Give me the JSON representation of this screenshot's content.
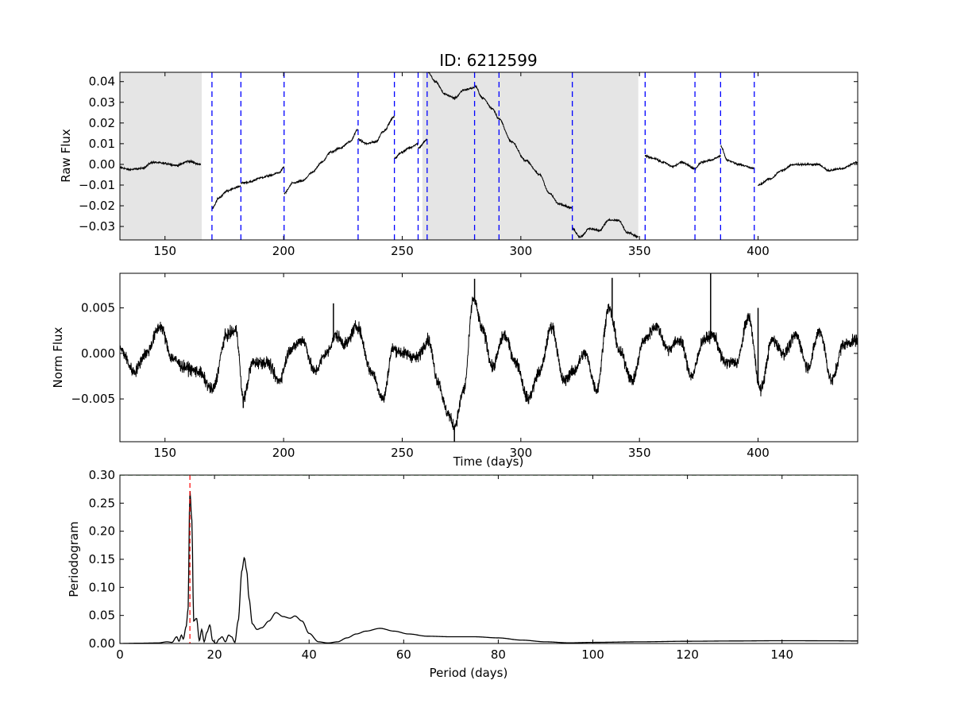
{
  "figure": {
    "title": "ID: 6212599"
  },
  "chart_data": [
    {
      "type": "line",
      "panel": "raw",
      "title": "ID: 6212599",
      "xlabel": "",
      "ylabel": "Raw Flux",
      "xlim": [
        131,
        442
      ],
      "ylim": [
        -0.0365,
        0.0445
      ],
      "xticks": [
        150,
        200,
        250,
        300,
        350,
        400
      ],
      "yticks": [
        -0.03,
        -0.02,
        -0.01,
        0.0,
        0.01,
        0.02,
        0.03,
        0.04
      ],
      "xtick_labels": [
        "150",
        "200",
        "250",
        "300",
        "350",
        "400"
      ],
      "ytick_labels": [
        "−0.03",
        "−0.02",
        "−0.01",
        "0.00",
        "0.01",
        "0.02",
        "0.03",
        "0.04"
      ],
      "shaded_regions": [
        [
          131,
          165.5
        ],
        [
          258.5,
          349.5
        ]
      ],
      "shade_color": "#e5e5e5",
      "quarter_boundaries": [
        169.8,
        182.0,
        200.2,
        231.4,
        246.7,
        256.7,
        260.5,
        280.5,
        290.8,
        321.7,
        352.4,
        373.4,
        384.2,
        398.4
      ],
      "boundary_color": "#0000ff",
      "line_color": "#000000",
      "segments": [
        {
          "x": [
            131,
            135,
            140,
            145,
            150,
            155,
            160,
            165
          ],
          "y": [
            -0.0015,
            -0.0025,
            -0.002,
            0.001,
            0.0005,
            -0.0005,
            0.0015,
            0.0
          ]
        },
        {
          "x": [
            169.8,
            173,
            176,
            179,
            182
          ],
          "y": [
            -0.021,
            -0.016,
            -0.013,
            -0.0115,
            -0.0105
          ]
        },
        {
          "x": [
            182.0,
            186,
            190,
            194,
            198,
            200.2
          ],
          "y": [
            -0.009,
            -0.0085,
            -0.0065,
            -0.0055,
            -0.004,
            -0.0015
          ]
        },
        {
          "x": [
            200.2,
            204,
            208,
            212,
            216,
            220,
            224,
            228,
            231.4
          ],
          "y": [
            -0.014,
            -0.009,
            -0.008,
            -0.004,
            0.001,
            0.006,
            0.008,
            0.011,
            0.017
          ]
        },
        {
          "x": [
            231.4,
            235,
            239,
            242,
            246.7
          ],
          "y": [
            0.012,
            0.01,
            0.011,
            0.016,
            0.023
          ]
        },
        {
          "x": [
            246.7,
            250,
            253,
            256.7
          ],
          "y": [
            0.003,
            0.006,
            0.008,
            0.01
          ]
        },
        {
          "x": [
            256.7,
            260.5
          ],
          "y": [
            0.008,
            0.012
          ]
        },
        {
          "x": [
            260.5,
            264,
            268,
            272,
            276,
            280.5
          ],
          "y": [
            0.045,
            0.04,
            0.034,
            0.032,
            0.036,
            0.037
          ]
        },
        {
          "x": [
            280.5,
            284,
            288,
            290.8
          ],
          "y": [
            0.038,
            0.032,
            0.027,
            0.022
          ]
        },
        {
          "x": [
            290.8,
            296,
            302,
            308,
            312,
            316,
            321.7
          ],
          "y": [
            0.022,
            0.011,
            0.002,
            -0.005,
            -0.014,
            -0.019,
            -0.021
          ]
        },
        {
          "x": [
            321.7,
            325,
            329,
            333,
            337,
            341,
            345,
            349.5
          ],
          "y": [
            -0.031,
            -0.035,
            -0.031,
            -0.032,
            -0.027,
            -0.027,
            -0.033,
            -0.035
          ]
        },
        {
          "x": [
            352.4,
            356,
            360,
            364,
            368,
            373.4
          ],
          "y": [
            0.004,
            0.003,
            0.001,
            -0.001,
            0.001,
            -0.002
          ]
        },
        {
          "x": [
            373.4,
            376,
            380,
            384.2
          ],
          "y": [
            -0.002,
            0.001,
            0.002,
            0.004
          ]
        },
        {
          "x": [
            384.2,
            387,
            392,
            398.4
          ],
          "y": [
            0.009,
            0.002,
            0.0,
            -0.002
          ]
        },
        {
          "x": [
            400,
            405,
            410,
            415,
            420,
            425,
            430,
            435,
            442
          ],
          "y": [
            -0.01,
            -0.007,
            -0.003,
            0.0,
            0.0,
            0.0,
            -0.003,
            -0.002,
            0.001
          ]
        }
      ]
    },
    {
      "type": "line",
      "panel": "norm",
      "title": "",
      "xlabel": "Time (days)",
      "ylabel": "Norm Flux",
      "xlim": [
        131,
        442
      ],
      "ylim": [
        -0.0097,
        0.0088
      ],
      "xticks": [
        150,
        200,
        250,
        300,
        350,
        400
      ],
      "yticks": [
        -0.005,
        0.0,
        0.005
      ],
      "xtick_labels": [
        "150",
        "200",
        "250",
        "300",
        "350",
        "400"
      ],
      "ytick_labels": [
        "−0.005",
        "0.000",
        "0.005"
      ],
      "line_color": "#000000",
      "x": [
        131,
        137,
        142,
        148,
        153,
        158,
        164,
        170,
        176,
        180,
        183,
        187,
        193,
        198,
        203,
        208,
        213,
        218,
        222,
        226,
        231,
        237,
        242,
        246,
        251,
        256,
        261,
        265,
        269,
        272,
        276,
        280,
        284,
        288,
        293,
        298,
        303,
        308,
        313,
        318,
        322,
        327,
        332,
        337,
        342,
        347,
        352,
        357,
        362,
        367,
        372,
        377,
        381,
        386,
        391,
        396,
        401,
        406,
        411,
        416,
        421,
        426,
        431,
        436,
        442
      ],
      "y": [
        0.0005,
        -0.002,
        0.0,
        0.003,
        -0.0005,
        -0.0015,
        -0.002,
        -0.004,
        0.002,
        0.0025,
        -0.005,
        -0.001,
        -0.001,
        -0.003,
        0.0005,
        0.0015,
        -0.002,
        0.0,
        0.002,
        0.001,
        0.003,
        -0.002,
        -0.005,
        0.0005,
        0.0,
        -0.0005,
        0.0015,
        -0.003,
        -0.0065,
        -0.008,
        -0.004,
        0.006,
        0.0025,
        -0.0015,
        0.002,
        -0.001,
        -0.005,
        -0.002,
        0.003,
        -0.003,
        -0.002,
        0.0,
        -0.004,
        0.005,
        0.0,
        -0.003,
        0.0015,
        0.003,
        0.0005,
        0.0015,
        -0.0025,
        0.0015,
        0.002,
        -0.001,
        -0.001,
        0.004,
        -0.004,
        0.0015,
        0.0,
        0.002,
        -0.0015,
        0.0025,
        -0.003,
        0.001,
        0.0015
      ],
      "spikes": [
        {
          "x": 183,
          "y": -0.006
        },
        {
          "x": 221,
          "y": 0.0055
        },
        {
          "x": 272,
          "y": -0.0097
        },
        {
          "x": 280.5,
          "y": 0.0082
        },
        {
          "x": 338.5,
          "y": 0.0083
        },
        {
          "x": 380,
          "y": 0.0088
        },
        {
          "x": 400,
          "y": 0.005
        }
      ]
    },
    {
      "type": "line",
      "panel": "periodogram",
      "title": "",
      "xlabel": "Period (days)",
      "ylabel": "Periodogram",
      "xlim": [
        0,
        156
      ],
      "ylim": [
        0,
        0.3
      ],
      "xticks": [
        0,
        20,
        40,
        60,
        80,
        100,
        120,
        140
      ],
      "yticks": [
        0.0,
        0.05,
        0.1,
        0.15,
        0.2,
        0.25,
        0.3
      ],
      "xtick_labels": [
        "0",
        "20",
        "40",
        "60",
        "80",
        "100",
        "120",
        "140"
      ],
      "ytick_labels": [
        "0.00",
        "0.05",
        "0.10",
        "0.15",
        "0.20",
        "0.25",
        "0.30"
      ],
      "peak_period": 14.8,
      "peak_marker_color": "#ff0000",
      "threshold": 0.3,
      "threshold_color": "#008000",
      "line_color": "#000000",
      "x": [
        0,
        4,
        8,
        10,
        11,
        12,
        12.5,
        13,
        13.4,
        14.0,
        14.4,
        14.8,
        15.2,
        15.6,
        16.2,
        16.8,
        17.3,
        17.8,
        18.4,
        19.0,
        19.6,
        20.3,
        21.0,
        21.6,
        22.3,
        23.0,
        23.6,
        24.3,
        25.0,
        25.8,
        26.3,
        26.8,
        27.3,
        28.0,
        29.0,
        30.0,
        31.5,
        33.0,
        34.5,
        36.0,
        37.0,
        38.5,
        40.0,
        42.0,
        44.0,
        46.0,
        48.0,
        50.0,
        52.0,
        55.0,
        58.0,
        61.0,
        65.0,
        70.0,
        75.0,
        80.0,
        85.0,
        90.0,
        95.0,
        100.0,
        110.0,
        120.0,
        130.0,
        140.0,
        150.0,
        156.0
      ],
      "y": [
        0.0,
        0.0005,
        0.001,
        0.003,
        0.002,
        0.012,
        0.004,
        0.015,
        0.008,
        0.03,
        0.06,
        0.272,
        0.22,
        0.04,
        0.045,
        0.005,
        0.025,
        0.003,
        0.02,
        0.033,
        0.005,
        0.0,
        0.008,
        0.012,
        0.003,
        0.015,
        0.012,
        0.002,
        0.04,
        0.13,
        0.153,
        0.13,
        0.08,
        0.035,
        0.025,
        0.028,
        0.04,
        0.055,
        0.048,
        0.045,
        0.049,
        0.04,
        0.018,
        0.003,
        0.001,
        0.003,
        0.01,
        0.017,
        0.022,
        0.027,
        0.022,
        0.017,
        0.013,
        0.012,
        0.012,
        0.01,
        0.006,
        0.003,
        0.0012,
        0.002,
        0.003,
        0.004,
        0.0045,
        0.005,
        0.0048,
        0.0045
      ]
    }
  ]
}
